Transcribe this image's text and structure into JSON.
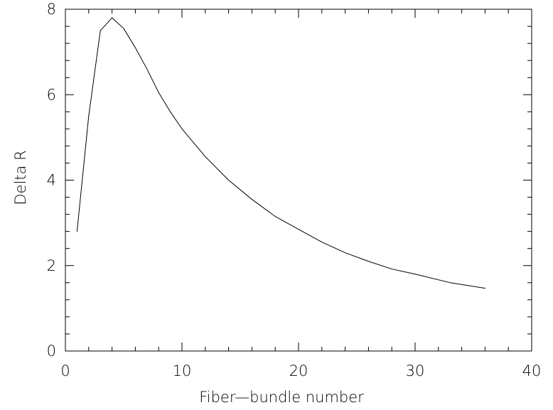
{
  "chart_data": {
    "type": "line",
    "title": "",
    "xlabel": "Fiber—bundle number",
    "ylabel": "Delta R",
    "xlim": [
      0,
      40
    ],
    "ylim": [
      0,
      8
    ],
    "xticks": [
      0,
      10,
      20,
      30,
      40
    ],
    "yticks": [
      0,
      2,
      4,
      6,
      8
    ],
    "x_tick_labels": [
      "0",
      "10",
      "20",
      "30",
      "40"
    ],
    "y_tick_labels": [
      "0",
      "2",
      "4",
      "6",
      "8"
    ],
    "grid": false,
    "series": [
      {
        "x": [
          1,
          2,
          3,
          4,
          5,
          6,
          7,
          8,
          9,
          10,
          12,
          14,
          16,
          18,
          20,
          22,
          24,
          26,
          28,
          30,
          33,
          36
        ],
        "y": [
          2.8,
          5.5,
          7.5,
          7.8,
          7.55,
          7.1,
          6.6,
          6.05,
          5.6,
          5.2,
          4.55,
          4.0,
          3.55,
          3.15,
          2.85,
          2.55,
          2.3,
          2.1,
          1.92,
          1.8,
          1.6,
          1.47
        ]
      }
    ],
    "colors": {
      "line": "#000000",
      "axes": "#000000",
      "background": "#ffffff"
    }
  }
}
